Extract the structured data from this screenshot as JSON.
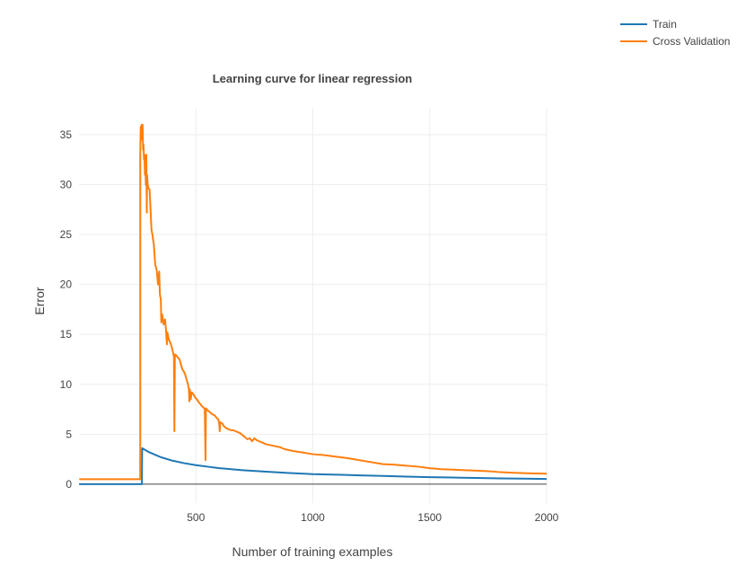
{
  "chart_data": {
    "type": "line",
    "title": "Learning curve for linear regression",
    "xlabel": "Number of training examples",
    "ylabel": "Error",
    "xlim": [
      0,
      2000
    ],
    "ylim": [
      -1.9,
      37.7
    ],
    "x_ticks": [
      500,
      1000,
      1500,
      2000
    ],
    "y_ticks": [
      0,
      5,
      10,
      15,
      20,
      25,
      30,
      35
    ],
    "grid": true,
    "legend_position": "top-right",
    "series": [
      {
        "name": "Train",
        "color": "#1f77b4",
        "points": [
          [
            1,
            0
          ],
          [
            269,
            0
          ],
          [
            269,
            0
          ],
          [
            270,
            3.6
          ],
          [
            300,
            3.2
          ],
          [
            350,
            2.7
          ],
          [
            400,
            2.35
          ],
          [
            450,
            2.1
          ],
          [
            500,
            1.9
          ],
          [
            550,
            1.75
          ],
          [
            600,
            1.6
          ],
          [
            650,
            1.5
          ],
          [
            700,
            1.4
          ],
          [
            800,
            1.25
          ],
          [
            900,
            1.12
          ],
          [
            1000,
            1.0
          ],
          [
            1100,
            0.95
          ],
          [
            1200,
            0.88
          ],
          [
            1300,
            0.82
          ],
          [
            1400,
            0.76
          ],
          [
            1500,
            0.7
          ],
          [
            1600,
            0.66
          ],
          [
            1700,
            0.62
          ],
          [
            1800,
            0.58
          ],
          [
            1900,
            0.55
          ],
          [
            2000,
            0.52
          ]
        ]
      },
      {
        "name": "Cross Validation",
        "color": "#ff7f0e",
        "points": [
          [
            1,
            0.5
          ],
          [
            262,
            0.5
          ],
          [
            262,
            33
          ],
          [
            264,
            35.8
          ],
          [
            266,
            34.5
          ],
          [
            268,
            36
          ],
          [
            270,
            35
          ],
          [
            272,
            36
          ],
          [
            274,
            33.5
          ],
          [
            276,
            34
          ],
          [
            278,
            32.5
          ],
          [
            280,
            33
          ],
          [
            282,
            31
          ],
          [
            284,
            32
          ],
          [
            286,
            30
          ],
          [
            288,
            33
          ],
          [
            290,
            27.2
          ],
          [
            291,
            31
          ],
          [
            294,
            30
          ],
          [
            298,
            29.6
          ],
          [
            302,
            29.5
          ],
          [
            306,
            27.5
          ],
          [
            310,
            25.5
          ],
          [
            314,
            25
          ],
          [
            320,
            24
          ],
          [
            326,
            22
          ],
          [
            332,
            21.5
          ],
          [
            338,
            20
          ],
          [
            343,
            21.3
          ],
          [
            346,
            19
          ],
          [
            350,
            18.5
          ],
          [
            352,
            16.2
          ],
          [
            356,
            17
          ],
          [
            362,
            16
          ],
          [
            368,
            16.5
          ],
          [
            372,
            15.5
          ],
          [
            376,
            14
          ],
          [
            378,
            15.2
          ],
          [
            384,
            14.5
          ],
          [
            390,
            14.2
          ],
          [
            396,
            13.8
          ],
          [
            402,
            13.2
          ],
          [
            406,
            12.8
          ],
          [
            408,
            5.3
          ],
          [
            410,
            13
          ],
          [
            416,
            12.9
          ],
          [
            422,
            12.7
          ],
          [
            430,
            12.5
          ],
          [
            436,
            12
          ],
          [
            442,
            11.5
          ],
          [
            448,
            11.3
          ],
          [
            454,
            11
          ],
          [
            460,
            10.5
          ],
          [
            466,
            10
          ],
          [
            470,
            9.5
          ],
          [
            472,
            8.3
          ],
          [
            474,
            9.5
          ],
          [
            478,
            8.5
          ],
          [
            482,
            9.2
          ],
          [
            490,
            9
          ],
          [
            496,
            8.7
          ],
          [
            504,
            8.5
          ],
          [
            512,
            8.2
          ],
          [
            520,
            8
          ],
          [
            526,
            7.8
          ],
          [
            532,
            7.7
          ],
          [
            538,
            7.5
          ],
          [
            541,
            2.4
          ],
          [
            543,
            7.6
          ],
          [
            550,
            7.4
          ],
          [
            560,
            7.2
          ],
          [
            570,
            7
          ],
          [
            580,
            6.9
          ],
          [
            590,
            6.6
          ],
          [
            596,
            6.5
          ],
          [
            600,
            6
          ],
          [
            602,
            5.3
          ],
          [
            604,
            6.2
          ],
          [
            612,
            6.1
          ],
          [
            620,
            5.8
          ],
          [
            630,
            5.6
          ],
          [
            640,
            5.5
          ],
          [
            650,
            5.4
          ],
          [
            660,
            5.4
          ],
          [
            670,
            5.3
          ],
          [
            680,
            5.2
          ],
          [
            690,
            5.1
          ],
          [
            700,
            4.9
          ],
          [
            710,
            4.7
          ],
          [
            720,
            4.5
          ],
          [
            730,
            4.6
          ],
          [
            740,
            4.3
          ],
          [
            750,
            4.6
          ],
          [
            760,
            4.4
          ],
          [
            780,
            4.2
          ],
          [
            800,
            4.0
          ],
          [
            820,
            3.9
          ],
          [
            840,
            3.8
          ],
          [
            860,
            3.7
          ],
          [
            880,
            3.5
          ],
          [
            900,
            3.4
          ],
          [
            920,
            3.3
          ],
          [
            950,
            3.2
          ],
          [
            1000,
            3.0
          ],
          [
            1050,
            2.9
          ],
          [
            1100,
            2.75
          ],
          [
            1150,
            2.6
          ],
          [
            1200,
            2.4
          ],
          [
            1250,
            2.2
          ],
          [
            1300,
            2.0
          ],
          [
            1350,
            1.95
          ],
          [
            1400,
            1.85
          ],
          [
            1450,
            1.75
          ],
          [
            1500,
            1.6
          ],
          [
            1550,
            1.5
          ],
          [
            1600,
            1.45
          ],
          [
            1650,
            1.4
          ],
          [
            1700,
            1.35
          ],
          [
            1750,
            1.3
          ],
          [
            1800,
            1.2
          ],
          [
            1850,
            1.15
          ],
          [
            1900,
            1.1
          ],
          [
            1950,
            1.07
          ],
          [
            2000,
            1.05
          ]
        ]
      }
    ]
  }
}
